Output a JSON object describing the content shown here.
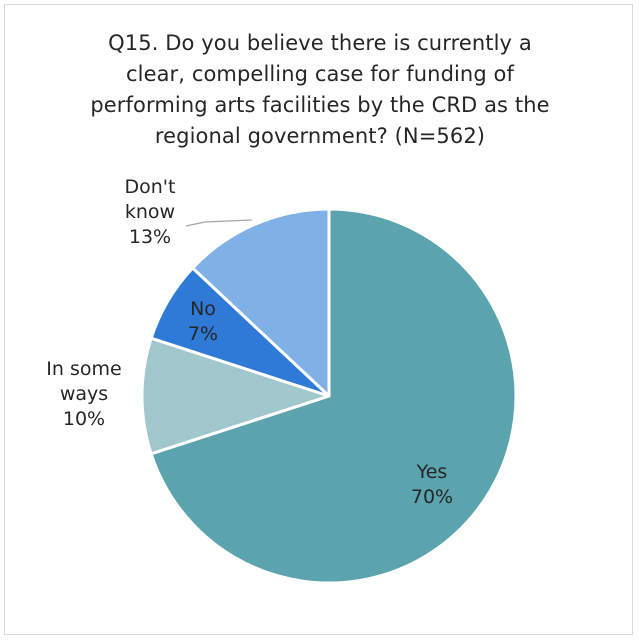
{
  "chart_data": {
    "type": "pie",
    "title": "Q15. Do you believe there is currently a clear, compelling case for funding of performing arts facilities by the CRD as the regional government? (N=562)",
    "title_lines": [
      "Q15. Do you believe there is currently a",
      "clear, compelling case for funding of",
      "performing arts facilities by the CRD as the",
      "regional government? (N=562)"
    ],
    "slices": [
      {
        "category": "Yes",
        "value": 70,
        "label_lines": [
          "Yes",
          "70%"
        ],
        "color": "#5BA3AE"
      },
      {
        "category": "In some ways",
        "value": 10,
        "label_lines": [
          "In some",
          "ways",
          "10%"
        ],
        "color": "#9FC7CC"
      },
      {
        "category": "No",
        "value": 7,
        "label_lines": [
          "No",
          "7%"
        ],
        "color": "#2E7AD6"
      },
      {
        "category": "Don't know",
        "value": 13,
        "label_lines": [
          "Don't",
          "know",
          "13%"
        ],
        "color": "#7FB1E6"
      }
    ],
    "start_angle": "12 o'clock",
    "direction": "clockwise",
    "legend": "none",
    "slice_border": "#ffffff"
  }
}
